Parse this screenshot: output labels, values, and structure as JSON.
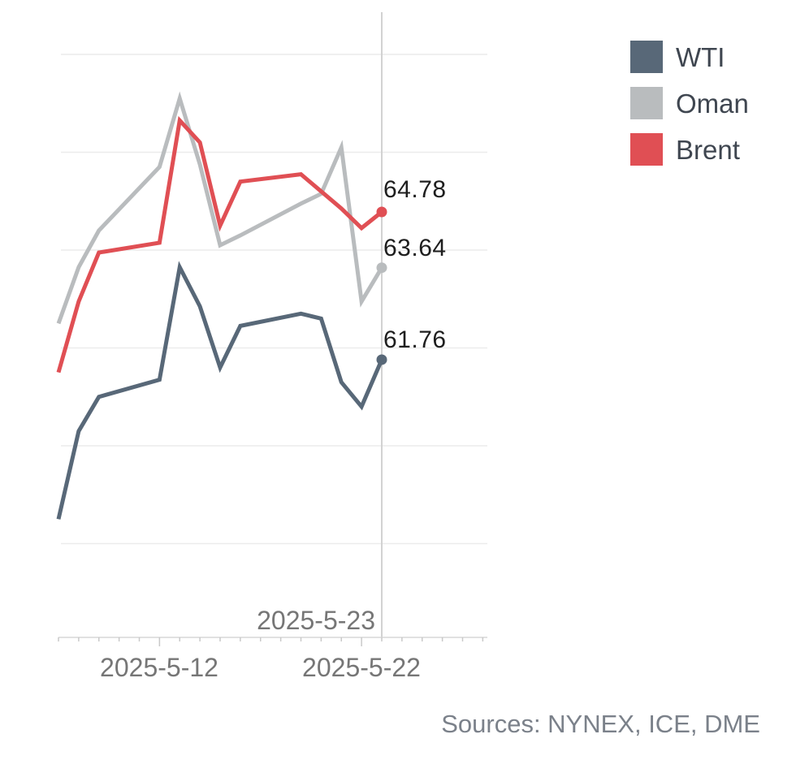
{
  "chart_data": {
    "type": "line",
    "title": "",
    "xlabel": "",
    "ylabel": "",
    "x": [
      "2025-5-7",
      "2025-5-8",
      "2025-5-9",
      "2025-5-12",
      "2025-5-13",
      "2025-5-14",
      "2025-5-15",
      "2025-5-16",
      "2025-5-19",
      "2025-5-20",
      "2025-5-21",
      "2025-5-22",
      "2025-5-23"
    ],
    "series": [
      {
        "name": "WTI",
        "color": "#586878",
        "end_label": "61.76",
        "values": [
          58.5,
          60.3,
          61.0,
          61.35,
          63.65,
          62.85,
          61.6,
          62.45,
          62.7,
          62.6,
          61.3,
          60.8,
          61.76
        ]
      },
      {
        "name": "Oman",
        "color": "#b9bcbe",
        "end_label": "63.64",
        "values": [
          62.5,
          63.65,
          64.4,
          65.7,
          67.1,
          65.75,
          64.1,
          64.3,
          64.95,
          65.15,
          66.1,
          62.95,
          63.64
        ]
      },
      {
        "name": "Brent",
        "color": "#e04f54",
        "end_label": "64.78",
        "values": [
          61.5,
          62.95,
          63.95,
          64.15,
          66.65,
          66.2,
          64.5,
          65.4,
          65.55,
          65.2,
          64.85,
          64.45,
          64.78
        ]
      }
    ],
    "ylim": [
      56,
      69
    ],
    "y_gridline_values": [
      68,
      66,
      64,
      62,
      60,
      58
    ],
    "x_tick_labels": [
      "2025-5-12",
      "2025-5-22"
    ],
    "reference_line": {
      "x": "2025-5-23",
      "label": "2025-5-23"
    },
    "grid": "horizontal",
    "legend_position": "top-right"
  },
  "legend": {
    "items": [
      {
        "label": "WTI",
        "color": "#586878"
      },
      {
        "label": "Oman",
        "color": "#b9bcbe"
      },
      {
        "label": "Brent",
        "color": "#e04f54"
      }
    ]
  },
  "annotations": {
    "brent_value": "64.78",
    "oman_value": "63.64",
    "wti_value": "61.76"
  },
  "axis": {
    "label_5_12": "2025-5-12",
    "label_5_22": "2025-5-22",
    "ref_label": "2025-5-23"
  },
  "footer": {
    "sources": "Sources: NYNEX, ICE, DME"
  },
  "colors": {
    "background": "#ffffff",
    "wti": "#586878",
    "oman": "#b9bcbe",
    "brent": "#e04f54",
    "gridline": "#ececec",
    "axis_line": "#d7d7d7",
    "tick": "#c9c9c9",
    "reference_line": "#d2d2d2",
    "value_label": "#1e1e1e",
    "axis_label": "#767676",
    "legend_label": "#3f4650",
    "sources": "#7b818a"
  }
}
